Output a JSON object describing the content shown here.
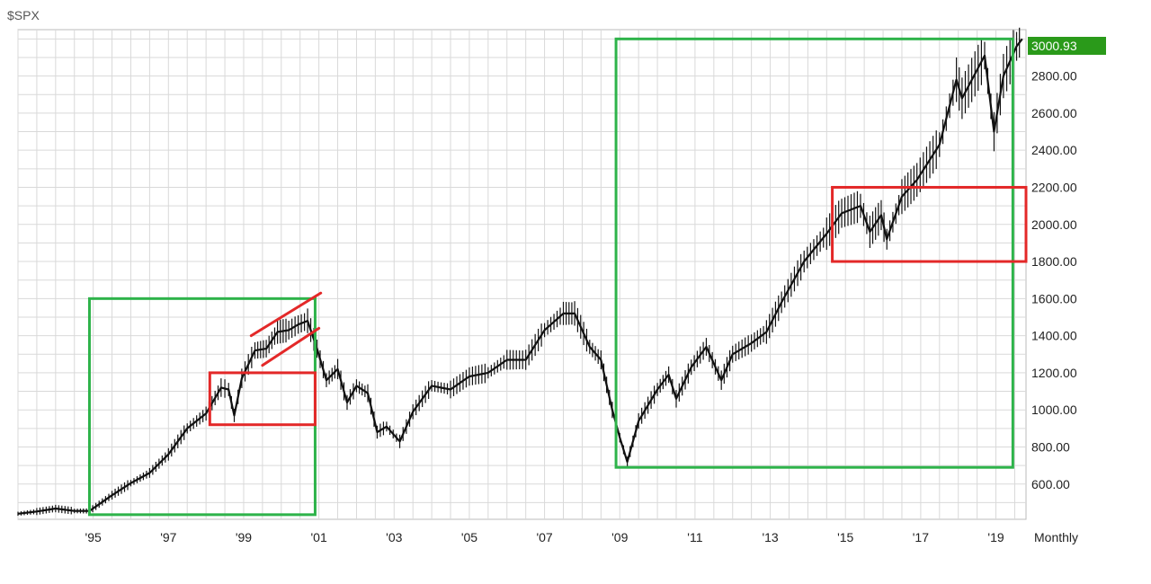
{
  "chart_data": {
    "type": "line",
    "title": "$SPX",
    "timeframe_label": "Monthly",
    "last_value_label": "3000.93",
    "x_ticks": [
      "'95",
      "'97",
      "'99",
      "'01",
      "'03",
      "'05",
      "'07",
      "'09",
      "'11",
      "'13",
      "'15",
      "'17",
      "'19"
    ],
    "y_ticks": [
      "600.00",
      "800.00",
      "1000.00",
      "1200.00",
      "1400.00",
      "1600.00",
      "1800.00",
      "2000.00",
      "2200.00",
      "2400.00",
      "2600.00",
      "2800.00"
    ],
    "xlim": [
      1993.0,
      2019.8
    ],
    "ylim": [
      410,
      3050
    ],
    "grid": true,
    "series": [
      {
        "points": [
          [
            1993.0,
            440
          ],
          [
            1993.5,
            452
          ],
          [
            1994.0,
            468
          ],
          [
            1994.5,
            455
          ],
          [
            1994.9,
            455
          ],
          [
            1995.5,
            540
          ],
          [
            1996.0,
            605
          ],
          [
            1996.5,
            660
          ],
          [
            1997.0,
            760
          ],
          [
            1997.5,
            900
          ],
          [
            1998.0,
            980
          ],
          [
            1998.4,
            1120
          ],
          [
            1998.6,
            1110
          ],
          [
            1998.75,
            970
          ],
          [
            1998.95,
            1170
          ],
          [
            1999.3,
            1320
          ],
          [
            1999.6,
            1330
          ],
          [
            1999.9,
            1420
          ],
          [
            2000.2,
            1430
          ],
          [
            2000.45,
            1460
          ],
          [
            2000.7,
            1480
          ],
          [
            2000.95,
            1330
          ],
          [
            2001.2,
            1160
          ],
          [
            2001.5,
            1220
          ],
          [
            2001.75,
            1040
          ],
          [
            2002.0,
            1130
          ],
          [
            2002.3,
            1090
          ],
          [
            2002.55,
            880
          ],
          [
            2002.8,
            910
          ],
          [
            2003.15,
            830
          ],
          [
            2003.5,
            990
          ],
          [
            2004.0,
            1130
          ],
          [
            2004.5,
            1110
          ],
          [
            2005.0,
            1180
          ],
          [
            2005.5,
            1200
          ],
          [
            2006.0,
            1270
          ],
          [
            2006.5,
            1270
          ],
          [
            2007.0,
            1430
          ],
          [
            2007.5,
            1520
          ],
          [
            2007.8,
            1520
          ],
          [
            2008.2,
            1340
          ],
          [
            2008.5,
            1270
          ],
          [
            2008.8,
            1000
          ],
          [
            2009.0,
            850
          ],
          [
            2009.2,
            720
          ],
          [
            2009.5,
            940
          ],
          [
            2010.0,
            1110
          ],
          [
            2010.3,
            1190
          ],
          [
            2010.5,
            1060
          ],
          [
            2010.9,
            1230
          ],
          [
            2011.3,
            1340
          ],
          [
            2011.7,
            1160
          ],
          [
            2012.0,
            1300
          ],
          [
            2012.5,
            1360
          ],
          [
            2012.9,
            1420
          ],
          [
            2013.3,
            1580
          ],
          [
            2013.9,
            1800
          ],
          [
            2014.5,
            1950
          ],
          [
            2014.9,
            2060
          ],
          [
            2015.4,
            2100
          ],
          [
            2015.65,
            1960
          ],
          [
            2015.95,
            2050
          ],
          [
            2016.1,
            1920
          ],
          [
            2016.5,
            2150
          ],
          [
            2016.9,
            2240
          ],
          [
            2017.5,
            2430
          ],
          [
            2017.95,
            2780
          ],
          [
            2018.1,
            2680
          ],
          [
            2018.7,
            2910
          ],
          [
            2018.95,
            2500
          ],
          [
            2019.2,
            2800
          ],
          [
            2019.55,
            2960
          ],
          [
            2019.7,
            3000
          ]
        ]
      }
    ],
    "annotations": {
      "green_boxes": [
        {
          "x": [
            1994.9,
            2000.9
          ],
          "y": [
            435,
            1600
          ]
        },
        {
          "x": [
            2008.9,
            2019.45
          ],
          "y": [
            690,
            3000
          ]
        }
      ],
      "red_boxes": [
        {
          "x": [
            1998.1,
            2000.9
          ],
          "y": [
            920,
            1200
          ]
        },
        {
          "x": [
            2014.65,
            2019.8
          ],
          "y": [
            1800,
            2200
          ]
        }
      ],
      "red_lines": [
        {
          "x": [
            1999.2,
            2001.05
          ],
          "y": [
            1400,
            1630
          ]
        },
        {
          "x": [
            1999.5,
            2001.0
          ],
          "y": [
            1240,
            1440
          ]
        }
      ]
    },
    "colors": {
      "price_line": "#111111",
      "grid": "#d9d9d9",
      "green_box": "#2eb34a",
      "red_box": "#e32828",
      "last_value_bg": "#2a9a1a",
      "last_value_text": "#ffffff",
      "axis_text": "#222222"
    }
  }
}
